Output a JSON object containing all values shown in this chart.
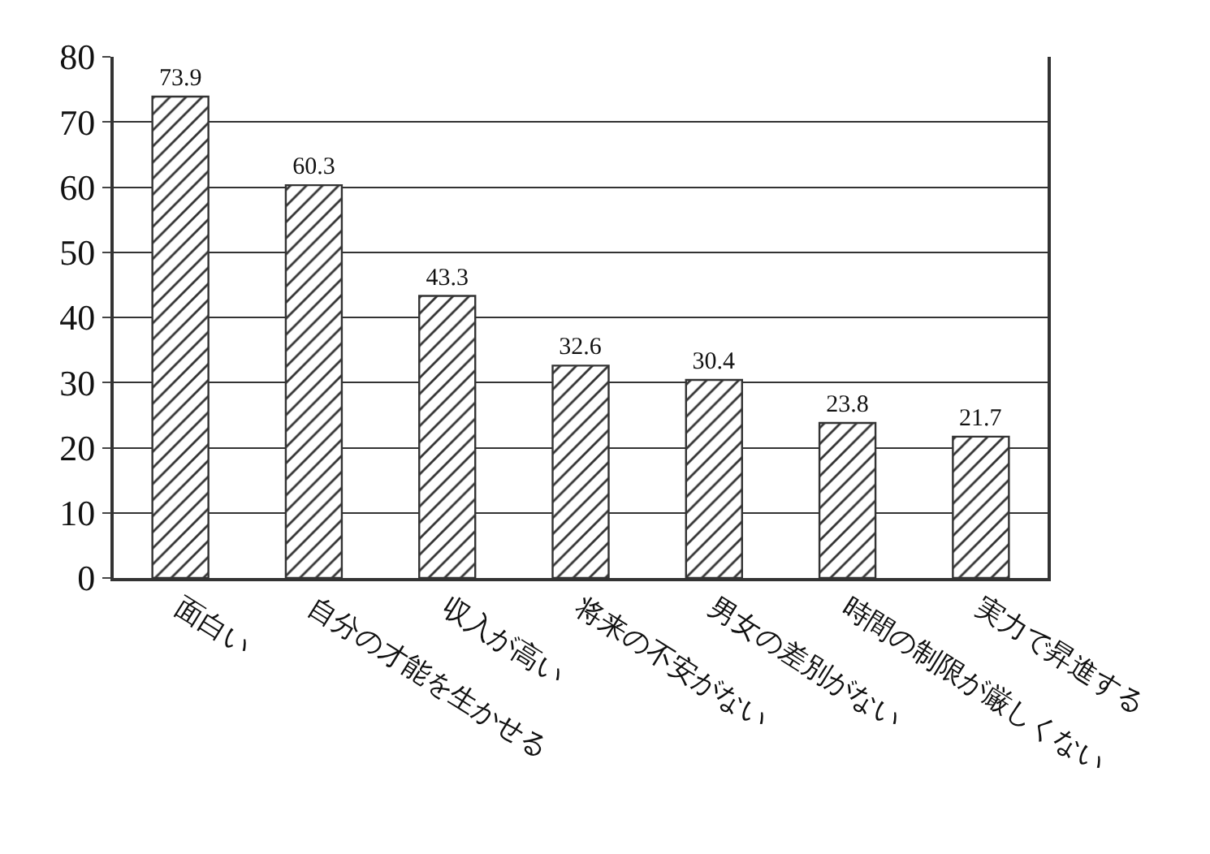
{
  "chart_data": {
    "type": "bar",
    "categories": [
      "面白い",
      "自分の才能を生かせる",
      "収入が高い",
      "将来の不安がない",
      "男女の差別がない",
      "時間の制限が厳しくない",
      "実力で昇進する"
    ],
    "values": [
      73.9,
      60.3,
      43.3,
      32.6,
      30.4,
      23.8,
      21.7
    ],
    "color": "#333333",
    "data_labels": true,
    "ylim": [
      0,
      80
    ],
    "yticks": [
      0,
      10,
      20,
      30,
      40,
      50,
      60,
      70,
      80
    ],
    "grid": "y",
    "legend": false
  }
}
